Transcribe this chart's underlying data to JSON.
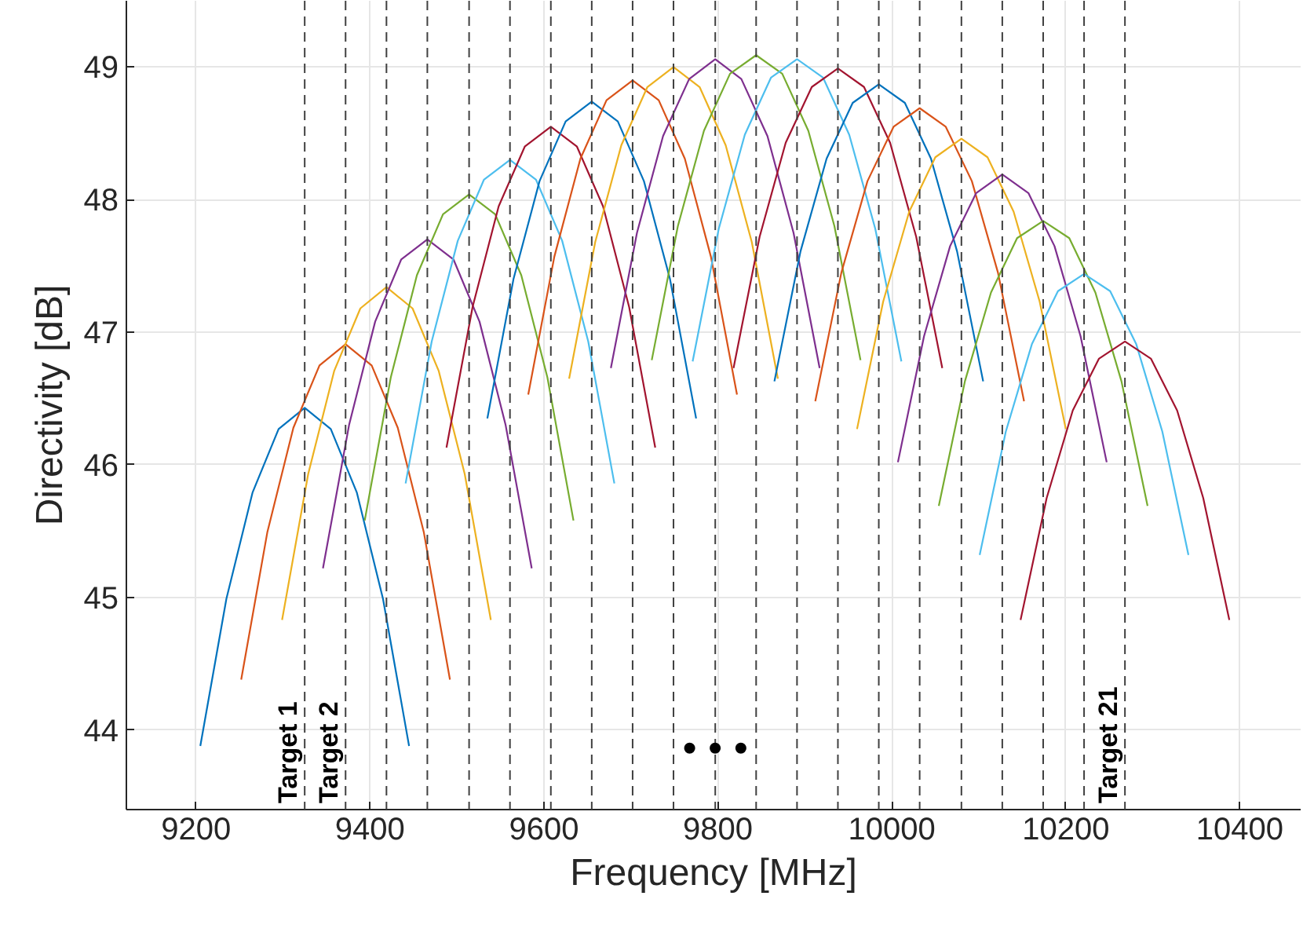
{
  "chart_data": {
    "type": "line",
    "xlabel": "Frequency [MHz]",
    "ylabel": "Directivity [dB]",
    "xlim": [
      9120,
      10470
    ],
    "xticks": [
      9200,
      9400,
      9600,
      9800,
      10000,
      10200,
      10400
    ],
    "ylim": [
      43.4,
      49.5
    ],
    "yticks": [
      44,
      45,
      46,
      47,
      48,
      49
    ],
    "grid": true,
    "line_style": "solid",
    "marker": "none",
    "series": [
      {
        "color": "#0072bd",
        "x": [
          9205,
          9235,
          9265,
          9295,
          9325,
          9355,
          9385,
          9415,
          9445
        ],
        "values": [
          43.88,
          44.99,
          45.79,
          46.27,
          46.43,
          46.27,
          45.79,
          44.99,
          43.88
        ]
      },
      {
        "color": "#d95319",
        "x": [
          9252,
          9282,
          9312,
          9342,
          9372,
          9402,
          9432,
          9462,
          9492
        ],
        "values": [
          44.38,
          45.49,
          46.28,
          46.75,
          46.91,
          46.75,
          46.28,
          45.49,
          44.38
        ]
      },
      {
        "color": "#edb120",
        "x": [
          9299,
          9329,
          9359,
          9389,
          9419,
          9449,
          9479,
          9509,
          9539
        ],
        "values": [
          44.83,
          45.93,
          46.71,
          47.18,
          47.34,
          47.18,
          46.71,
          45.93,
          44.83
        ]
      },
      {
        "color": "#7e2f8e",
        "x": [
          9346,
          9376,
          9406,
          9436,
          9466,
          9496,
          9526,
          9556,
          9586
        ],
        "values": [
          45.22,
          46.3,
          47.08,
          47.55,
          47.7,
          47.55,
          47.08,
          46.3,
          45.22
        ]
      },
      {
        "color": "#77ac30",
        "x": [
          9394,
          9424,
          9454,
          9484,
          9514,
          9544,
          9574,
          9604,
          9634
        ],
        "values": [
          45.58,
          46.66,
          47.43,
          47.89,
          48.04,
          47.89,
          47.43,
          46.66,
          45.58
        ]
      },
      {
        "color": "#4dbeee",
        "x": [
          9441,
          9471,
          9501,
          9531,
          9561,
          9591,
          9621,
          9651,
          9681
        ],
        "values": [
          45.86,
          46.93,
          47.69,
          48.15,
          48.3,
          48.15,
          47.69,
          46.93,
          45.86
        ]
      },
      {
        "color": "#a2142f",
        "x": [
          9488,
          9518,
          9548,
          9578,
          9608,
          9638,
          9668,
          9698,
          9728
        ],
        "values": [
          46.13,
          47.19,
          47.95,
          48.4,
          48.55,
          48.4,
          47.95,
          47.19,
          46.13
        ]
      },
      {
        "color": "#0072bd",
        "x": [
          9535,
          9565,
          9595,
          9625,
          9655,
          9685,
          9715,
          9745,
          9775
        ],
        "values": [
          46.35,
          47.4,
          48.14,
          48.59,
          48.74,
          48.59,
          48.14,
          47.4,
          46.35
        ]
      },
      {
        "color": "#d95319",
        "x": [
          9582,
          9612,
          9642,
          9672,
          9702,
          9732,
          9762,
          9792,
          9822
        ],
        "values": [
          46.53,
          47.57,
          48.31,
          48.75,
          48.9,
          48.75,
          48.31,
          47.57,
          46.53
        ]
      },
      {
        "color": "#edb120",
        "x": [
          9629,
          9659,
          9689,
          9719,
          9749,
          9779,
          9809,
          9839,
          9869
        ],
        "values": [
          46.65,
          47.68,
          48.41,
          48.85,
          49.0,
          48.85,
          48.41,
          47.68,
          46.65
        ]
      },
      {
        "color": "#7e2f8e",
        "x": [
          9677,
          9707,
          9737,
          9767,
          9797,
          9827,
          9857,
          9887,
          9917
        ],
        "values": [
          46.73,
          47.75,
          48.48,
          48.91,
          49.06,
          48.91,
          48.48,
          47.75,
          46.73
        ]
      },
      {
        "color": "#77ac30",
        "x": [
          9724,
          9754,
          9784,
          9814,
          9844,
          9874,
          9904,
          9934,
          9964
        ],
        "values": [
          46.79,
          47.8,
          48.52,
          48.95,
          49.09,
          48.95,
          48.52,
          47.8,
          46.79
        ]
      },
      {
        "color": "#4dbeee",
        "x": [
          9771,
          9801,
          9831,
          9861,
          9891,
          9921,
          9951,
          9981,
          10011
        ],
        "values": [
          46.78,
          47.78,
          48.49,
          48.92,
          49.06,
          48.92,
          48.49,
          47.78,
          46.78
        ]
      },
      {
        "color": "#a2142f",
        "x": [
          9818,
          9848,
          9878,
          9908,
          9938,
          9968,
          9998,
          10028,
          10058
        ],
        "values": [
          46.73,
          47.72,
          48.43,
          48.85,
          48.99,
          48.85,
          48.43,
          47.72,
          46.73
        ]
      },
      {
        "color": "#0072bd",
        "x": [
          9865,
          9895,
          9925,
          9955,
          9985,
          10015,
          10045,
          10075,
          10105
        ],
        "values": [
          46.63,
          47.61,
          48.31,
          48.73,
          48.87,
          48.73,
          48.31,
          47.61,
          46.63
        ]
      },
      {
        "color": "#d95319",
        "x": [
          9912,
          9942,
          9972,
          10002,
          10032,
          10062,
          10092,
          10122,
          10152
        ],
        "values": [
          46.48,
          47.45,
          48.14,
          48.55,
          48.69,
          48.55,
          48.14,
          47.45,
          46.48
        ]
      },
      {
        "color": "#edb120",
        "x": [
          9960,
          9990,
          10020,
          10050,
          10080,
          10110,
          10140,
          10170,
          10200
        ],
        "values": [
          46.27,
          47.23,
          47.91,
          48.32,
          48.46,
          48.32,
          47.91,
          47.23,
          46.27
        ]
      },
      {
        "color": "#7e2f8e",
        "x": [
          10007,
          10037,
          10067,
          10097,
          10127,
          10157,
          10187,
          10217,
          10247
        ],
        "values": [
          46.02,
          46.97,
          47.65,
          48.05,
          48.19,
          48.05,
          47.65,
          46.97,
          46.02
        ]
      },
      {
        "color": "#77ac30",
        "x": [
          10054,
          10084,
          10114,
          10144,
          10174,
          10204,
          10234,
          10264,
          10294
        ],
        "values": [
          45.69,
          46.63,
          47.3,
          47.71,
          47.84,
          47.71,
          47.3,
          46.63,
          45.69
        ]
      },
      {
        "color": "#4dbeee",
        "x": [
          10101,
          10131,
          10161,
          10191,
          10221,
          10251,
          10281,
          10311,
          10341
        ],
        "values": [
          45.32,
          46.25,
          46.91,
          47.31,
          47.44,
          47.31,
          46.91,
          46.25,
          45.32
        ]
      },
      {
        "color": "#a2142f",
        "x": [
          10148,
          10178,
          10208,
          10238,
          10268,
          10298,
          10328,
          10358,
          10388
        ],
        "values": [
          44.83,
          45.75,
          46.41,
          46.8,
          46.93,
          46.8,
          46.41,
          45.75,
          44.83
        ]
      }
    ],
    "ref_lines": [
      {
        "axis": "x",
        "value": 9325,
        "label": "Target 1",
        "color": "#404040",
        "line_style": "dashed"
      },
      {
        "axis": "x",
        "value": 9372,
        "label": "Target 2",
        "color": "#404040",
        "line_style": "dashed"
      },
      {
        "axis": "x",
        "value": 9419,
        "label": null,
        "color": "#404040",
        "line_style": "dashed"
      },
      {
        "axis": "x",
        "value": 9466,
        "label": null,
        "color": "#404040",
        "line_style": "dashed"
      },
      {
        "axis": "x",
        "value": 9514,
        "label": null,
        "color": "#404040",
        "line_style": "dashed"
      },
      {
        "axis": "x",
        "value": 9561,
        "label": null,
        "color": "#404040",
        "line_style": "dashed"
      },
      {
        "axis": "x",
        "value": 9608,
        "label": null,
        "color": "#404040",
        "line_style": "dashed"
      },
      {
        "axis": "x",
        "value": 9655,
        "label": null,
        "color": "#404040",
        "line_style": "dashed"
      },
      {
        "axis": "x",
        "value": 9702,
        "label": null,
        "color": "#404040",
        "line_style": "dashed"
      },
      {
        "axis": "x",
        "value": 9749,
        "label": null,
        "color": "#404040",
        "line_style": "dashed"
      },
      {
        "axis": "x",
        "value": 9797,
        "label": null,
        "color": "#404040",
        "line_style": "dashed"
      },
      {
        "axis": "x",
        "value": 9844,
        "label": null,
        "color": "#404040",
        "line_style": "dashed"
      },
      {
        "axis": "x",
        "value": 9891,
        "label": null,
        "color": "#404040",
        "line_style": "dashed"
      },
      {
        "axis": "x",
        "value": 9938,
        "label": null,
        "color": "#404040",
        "line_style": "dashed"
      },
      {
        "axis": "x",
        "value": 9985,
        "label": null,
        "color": "#404040",
        "line_style": "dashed"
      },
      {
        "axis": "x",
        "value": 10032,
        "label": null,
        "color": "#404040",
        "line_style": "dashed"
      },
      {
        "axis": "x",
        "value": 10080,
        "label": null,
        "color": "#404040",
        "line_style": "dashed"
      },
      {
        "axis": "x",
        "value": 10127,
        "label": null,
        "color": "#404040",
        "line_style": "dashed"
      },
      {
        "axis": "x",
        "value": 10174,
        "label": null,
        "color": "#404040",
        "line_style": "dashed"
      },
      {
        "axis": "x",
        "value": 10221,
        "label": null,
        "color": "#404040",
        "line_style": "dashed"
      },
      {
        "axis": "x",
        "value": 10268,
        "label": "Target 21",
        "color": "#404040",
        "line_style": "dashed"
      }
    ],
    "annotations": [
      {
        "text": "• • •",
        "x": 9797,
        "y": 43.87
      }
    ]
  }
}
